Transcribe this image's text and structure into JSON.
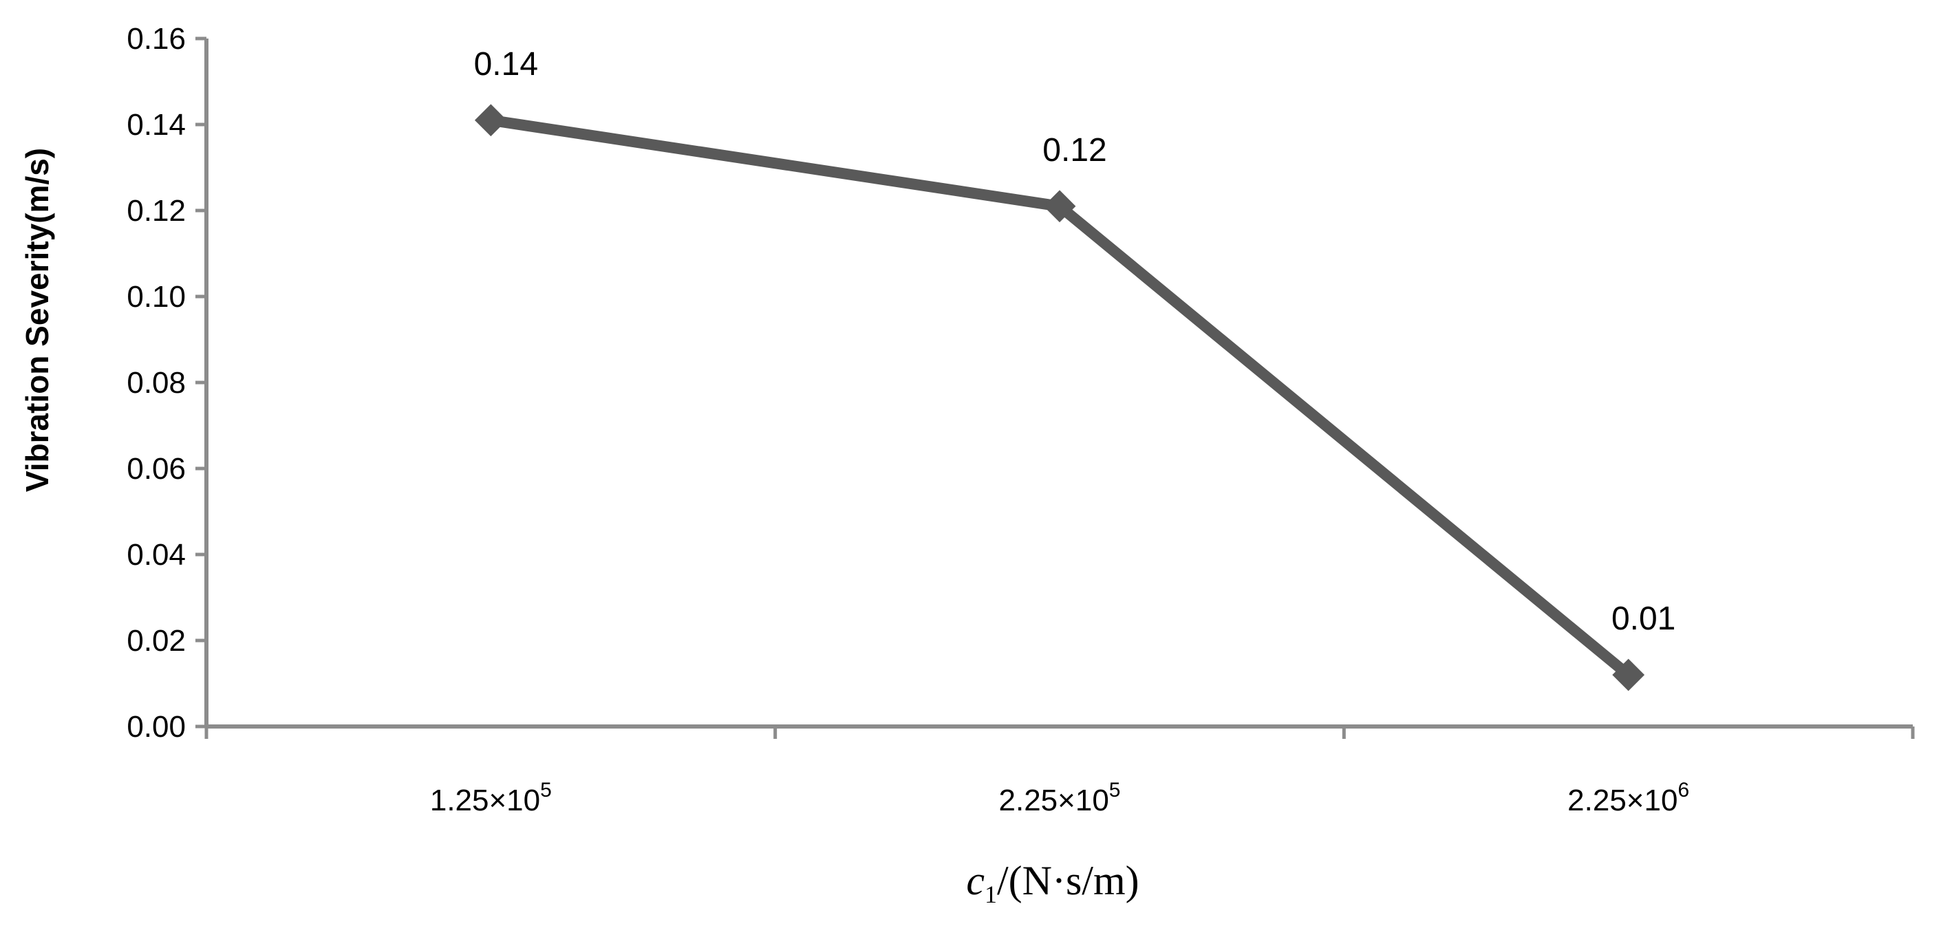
{
  "chart_data": {
    "type": "line",
    "title": "",
    "ylabel": "Vibration Severity(m/s)",
    "xlabel": {
      "var": "c",
      "sub": "1",
      "unit": "/(N·s/m)"
    },
    "ylim": [
      0,
      0.16
    ],
    "yticks": [
      "0.00",
      "0.02",
      "0.04",
      "0.06",
      "0.08",
      "0.10",
      "0.12",
      "0.14",
      "0.16"
    ],
    "categories": [
      {
        "mantissa": "1.25×10",
        "exponent": "5"
      },
      {
        "mantissa": "2.25×10",
        "exponent": "5"
      },
      {
        "mantissa": "2.25×10",
        "exponent": "6"
      }
    ],
    "series": [
      {
        "values": [
          0.141,
          0.121,
          0.012
        ],
        "data_labels": [
          "0.14",
          "0.12",
          "0.01"
        ],
        "color": "#595959",
        "marker": "diamond"
      }
    ],
    "axis_color": "#8c8c8c",
    "grid": false,
    "legend": "none"
  }
}
